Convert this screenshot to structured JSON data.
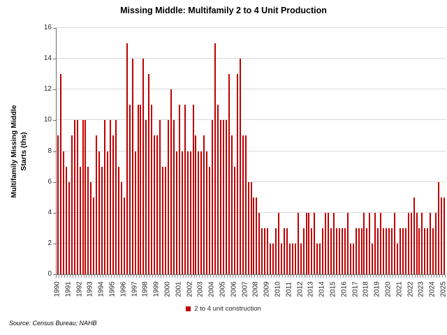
{
  "title": "Missing Middle: Multifamily 2 to 4 Unit Production",
  "source_note": "Source: Census Bureau; NAHB",
  "legend": {
    "label": "2 to 4 unit construction",
    "marker_color": "#c00000"
  },
  "y_axis": {
    "title_line1": "Multifamily Missing Middle",
    "title_line2": "Starts (ths)"
  },
  "colors": {
    "bar": "#c00000",
    "gridline": "#d9d9d9",
    "axis": "#6e6e6e",
    "text": "#262626"
  },
  "chart_data": {
    "type": "bar",
    "title": "Missing Middle: Multifamily 2 to 4 Unit Production",
    "xlabel": "",
    "ylabel": "Multifamily Missing Middle Starts (ths)",
    "ylim": [
      0,
      16
    ],
    "ytick_step": 2,
    "ytick_labels": [
      0,
      2,
      4,
      6,
      8,
      10,
      12,
      14,
      16
    ],
    "grid": "horizontal",
    "legend_position": "bottom-center",
    "legend_entries": [
      "2 to 4 unit construction"
    ],
    "bar_color": "#c00000",
    "frequency": "quarterly",
    "x_year_labels": [
      "1990",
      "1991",
      "1992",
      "1993",
      "1994",
      "1995",
      "1996",
      "1997",
      "1998",
      "1999",
      "2000",
      "2001",
      "2002",
      "2003",
      "2004",
      "2005",
      "2006",
      "2007",
      "2008",
      "2009",
      "2010",
      "2011",
      "2012",
      "2013",
      "2014",
      "2015",
      "2016",
      "2017",
      "2018",
      "2019",
      "2020",
      "2021",
      "2022",
      "2023",
      "2024",
      "2025"
    ],
    "categories": [
      "1990Q1",
      "1990Q2",
      "1990Q3",
      "1990Q4",
      "1991Q1",
      "1991Q2",
      "1991Q3",
      "1991Q4",
      "1992Q1",
      "1992Q2",
      "1992Q3",
      "1992Q4",
      "1993Q1",
      "1993Q2",
      "1993Q3",
      "1993Q4",
      "1994Q1",
      "1994Q2",
      "1994Q3",
      "1994Q4",
      "1995Q1",
      "1995Q2",
      "1995Q3",
      "1995Q4",
      "1996Q1",
      "1996Q2",
      "1996Q3",
      "1996Q4",
      "1997Q1",
      "1997Q2",
      "1997Q3",
      "1997Q4",
      "1998Q1",
      "1998Q2",
      "1998Q3",
      "1998Q4",
      "1999Q1",
      "1999Q2",
      "1999Q3",
      "1999Q4",
      "2000Q1",
      "2000Q2",
      "2000Q3",
      "2000Q4",
      "2001Q1",
      "2001Q2",
      "2001Q3",
      "2001Q4",
      "2002Q1",
      "2002Q2",
      "2002Q3",
      "2002Q4",
      "2003Q1",
      "2003Q2",
      "2003Q3",
      "2003Q4",
      "2004Q1",
      "2004Q2",
      "2004Q3",
      "2004Q4",
      "2005Q1",
      "2005Q2",
      "2005Q3",
      "2005Q4",
      "2006Q1",
      "2006Q2",
      "2006Q3",
      "2006Q4",
      "2007Q1",
      "2007Q2",
      "2007Q3",
      "2007Q4",
      "2008Q1",
      "2008Q2",
      "2008Q3",
      "2008Q4",
      "2009Q1",
      "2009Q2",
      "2009Q3",
      "2009Q4",
      "2010Q1",
      "2010Q2",
      "2010Q3",
      "2010Q4",
      "2011Q1",
      "2011Q2",
      "2011Q3",
      "2011Q4",
      "2012Q1",
      "2012Q2",
      "2012Q3",
      "2012Q4",
      "2013Q1",
      "2013Q2",
      "2013Q3",
      "2013Q4",
      "2014Q1",
      "2014Q2",
      "2014Q3",
      "2014Q4",
      "2015Q1",
      "2015Q2",
      "2015Q3",
      "2015Q4",
      "2016Q1",
      "2016Q2",
      "2016Q3",
      "2016Q4",
      "2017Q1",
      "2017Q2",
      "2017Q3",
      "2017Q4",
      "2018Q1",
      "2018Q2",
      "2018Q3",
      "2018Q4",
      "2019Q1",
      "2019Q2",
      "2019Q3",
      "2019Q4",
      "2020Q1",
      "2020Q2",
      "2020Q3",
      "2020Q4",
      "2021Q1",
      "2021Q2",
      "2021Q3",
      "2021Q4",
      "2022Q1",
      "2022Q2",
      "2022Q3",
      "2022Q4",
      "2023Q1",
      "2023Q2",
      "2023Q3",
      "2023Q4",
      "2024Q1",
      "2024Q2",
      "2024Q3",
      "2024Q4",
      "2025Q1"
    ],
    "series": [
      {
        "name": "2 to 4 unit construction",
        "values": [
          9,
          13,
          8,
          7,
          6,
          9,
          10,
          10,
          7,
          10,
          10,
          7,
          6,
          5,
          9,
          8,
          7,
          10,
          8,
          10,
          9,
          10,
          7,
          6,
          5,
          15,
          11,
          14,
          8,
          11,
          11,
          14,
          10,
          13,
          11,
          9,
          9,
          10,
          7,
          7,
          10,
          12,
          10,
          8,
          11,
          8,
          11,
          8,
          8,
          11,
          9,
          8,
          8,
          9,
          8,
          7,
          10,
          15,
          11,
          10,
          10,
          10,
          13,
          9,
          7,
          13,
          14,
          9,
          9,
          6,
          6,
          5,
          5,
          4,
          3,
          3,
          3,
          2,
          2,
          3,
          4,
          2,
          3,
          3,
          2,
          2,
          2,
          4,
          2,
          3,
          4,
          4,
          3,
          4,
          2,
          2,
          3,
          4,
          4,
          3,
          4,
          3,
          3,
          3,
          3,
          4,
          2,
          2,
          3,
          3,
          3,
          4,
          3,
          4,
          2,
          4,
          3,
          4,
          3,
          3,
          3,
          3,
          4,
          2,
          3,
          3,
          3,
          4,
          4,
          5,
          4,
          3,
          4,
          3,
          3,
          4,
          3,
          4,
          6,
          5,
          5
        ]
      }
    ]
  }
}
